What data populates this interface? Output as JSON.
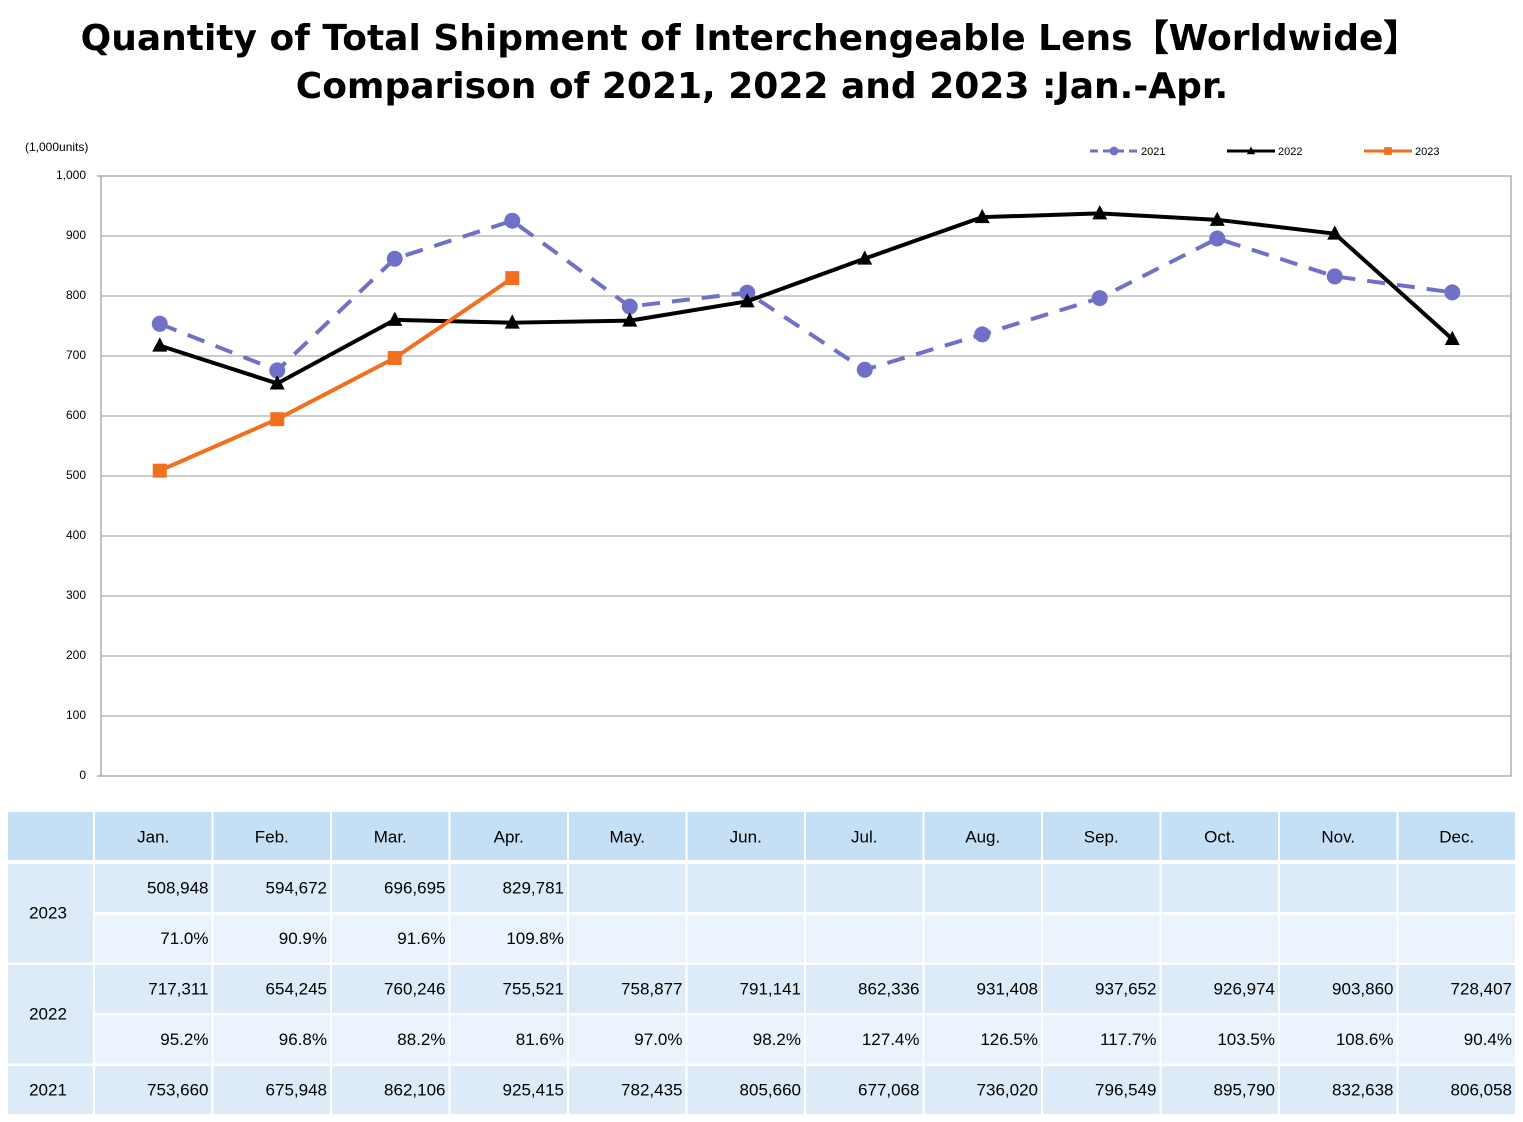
{
  "chart_data": {
    "type": "line",
    "title": "Quantity of Total Shipment of Interchengeable Lens【Worldwide】",
    "subtitle": "Comparison of 2021, 2022 and 2023 :Jan.-Apr.",
    "y_axis_label": "(1,000units)",
    "categories": [
      "Jan.",
      "Feb.",
      "Mar.",
      "Apr.",
      "May.",
      "Jun.",
      "Jul.",
      "Aug.",
      "Sep.",
      "Oct.",
      "Nov.",
      "Dec."
    ],
    "series": [
      {
        "name": "2021",
        "color": "#7070c8",
        "dashed": true,
        "marker": "circle",
        "values": [
          753.66,
          675.948,
          862.106,
          925.415,
          782.435,
          805.66,
          677.068,
          736.02,
          796.549,
          895.79,
          832.638,
          806.058
        ]
      },
      {
        "name": "2022",
        "color": "#000000",
        "dashed": false,
        "marker": "triangle",
        "values": [
          717.311,
          654.245,
          760.246,
          755.521,
          758.877,
          791.141,
          862.336,
          931.408,
          937.652,
          926.974,
          903.86,
          728.407
        ]
      },
      {
        "name": "2023",
        "color": "#f07020",
        "dashed": false,
        "marker": "square",
        "values": [
          508.948,
          594.672,
          696.695,
          829.781,
          null,
          null,
          null,
          null,
          null,
          null,
          null,
          null
        ]
      }
    ],
    "ylim": [
      0,
      1000
    ],
    "yticks": [
      0,
      100,
      200,
      300,
      400,
      500,
      600,
      700,
      800,
      900,
      {
        "value": 1000,
        "label": "1,000"
      }
    ],
    "grid": true,
    "legend": "top-right"
  },
  "table": {
    "blocks": [
      {
        "units": [
          "508,948",
          "594,672",
          "696,695",
          "829,781"
        ],
        "ratio": [
          "71.0%",
          "90.9%",
          "91.6%",
          "109.8%"
        ]
      },
      {
        "units": [
          "717,311",
          "654,245",
          "760,246",
          "755,521",
          "758,877",
          "791,141",
          "862,336",
          "931,408",
          "937,652",
          "926,974",
          "903,860",
          "728,407"
        ],
        "ratio": [
          "95.2%",
          "96.8%",
          "88.2%",
          "81.6%",
          "97.0%",
          "98.2%",
          "127.4%",
          "126.5%",
          "117.7%",
          "103.5%",
          "108.6%",
          "90.4%"
        ]
      },
      {
        "units": [
          "753,660",
          "675,948",
          "862,106",
          "925,415",
          "782,435",
          "805,660",
          "677,068",
          "736,020",
          "796,549",
          "895,790",
          "832,638",
          "806,058"
        ]
      }
    ]
  }
}
